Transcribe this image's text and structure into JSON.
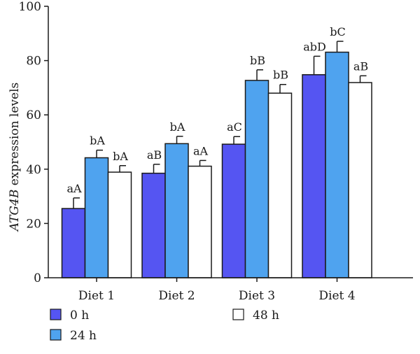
{
  "chart_data": {
    "type": "bar",
    "ylabel_italic": "ATG4B",
    "ylabel_rest": " expression levels",
    "ylim": [
      0,
      100
    ],
    "yticks": [
      0,
      20,
      40,
      60,
      80,
      100
    ],
    "grid": false,
    "legend_position": "bottom",
    "categories": [
      "Diet 1",
      "Diet 2",
      "Diet 3",
      "Diet 4"
    ],
    "series": [
      {
        "name": "0 h",
        "color": "#5555f2",
        "values": [
          25.5,
          38.5,
          49.2,
          74.8
        ],
        "errors": [
          3.9,
          3.3,
          2.8,
          6.8
        ],
        "labels": [
          "aA",
          "aB",
          "aC",
          "abD"
        ]
      },
      {
        "name": "24 h",
        "color": "#4fa3ef",
        "values": [
          44.2,
          49.4,
          72.7,
          83.1
        ],
        "errors": [
          2.8,
          2.7,
          3.9,
          4.0
        ],
        "labels": [
          "bA",
          "bA",
          "bB",
          "bC"
        ]
      },
      {
        "name": "48 h",
        "color": "#ffffff",
        "values": [
          38.9,
          41.1,
          68.0,
          71.9
        ],
        "errors": [
          2.4,
          2.1,
          3.2,
          2.5
        ],
        "labels": [
          "bA",
          "aA",
          "bB",
          "aB"
        ]
      }
    ]
  }
}
